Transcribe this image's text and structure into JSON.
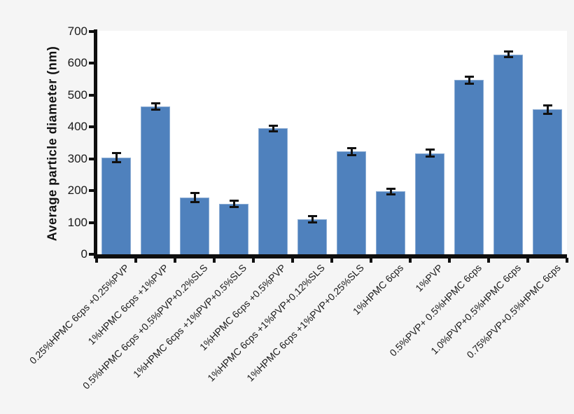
{
  "figure": {
    "background_color": "#f5f5f5",
    "plot_background_color": "#ffffff",
    "axis_color": "#0f0f0f",
    "text_color": "#1a1a1a"
  },
  "chart_data": {
    "type": "bar",
    "title": "",
    "xlabel": "",
    "ylabel": "Average particle diameter (nm)",
    "ylim": [
      0,
      700
    ],
    "yticks": [
      0,
      100,
      200,
      300,
      400,
      500,
      600,
      700
    ],
    "grid": false,
    "legend": "none",
    "bar_color": "#4f81bd",
    "error_bar_color": "#111111",
    "error_bar_style": "plus-minus with caps",
    "x_label_rotation_deg": 45,
    "categories": [
      "0.25%HPMC 6cps +0.25%PVP",
      "1%HPMC 6cps +1%PVP",
      "0.5%HPMC 6cps +0.5%PVP+0.2%SLS",
      "1%HPMC 6cps +1%PVP+0.5%SLS",
      "1%HPMC 6cps +0.5%PVP",
      "1%HPMC 6cps +1%PVP+0.12%SLS",
      "1%HPMC 6cps +1%PVP+0.25%SLS",
      "1%HPMC 6cps",
      "1%PVP",
      "0.5%PVP+ 0.5%HPMC 6cps",
      "1.0%PVP+0.5%HPMC 6cps",
      "0.75%PVP+0.5%HPMC 6cps"
    ],
    "values": [
      304,
      464,
      178,
      158,
      396,
      110,
      323,
      198,
      318,
      548,
      628,
      455
    ],
    "errors": [
      16,
      11,
      15,
      11,
      10,
      12,
      12,
      10,
      12,
      12,
      10,
      14
    ]
  }
}
